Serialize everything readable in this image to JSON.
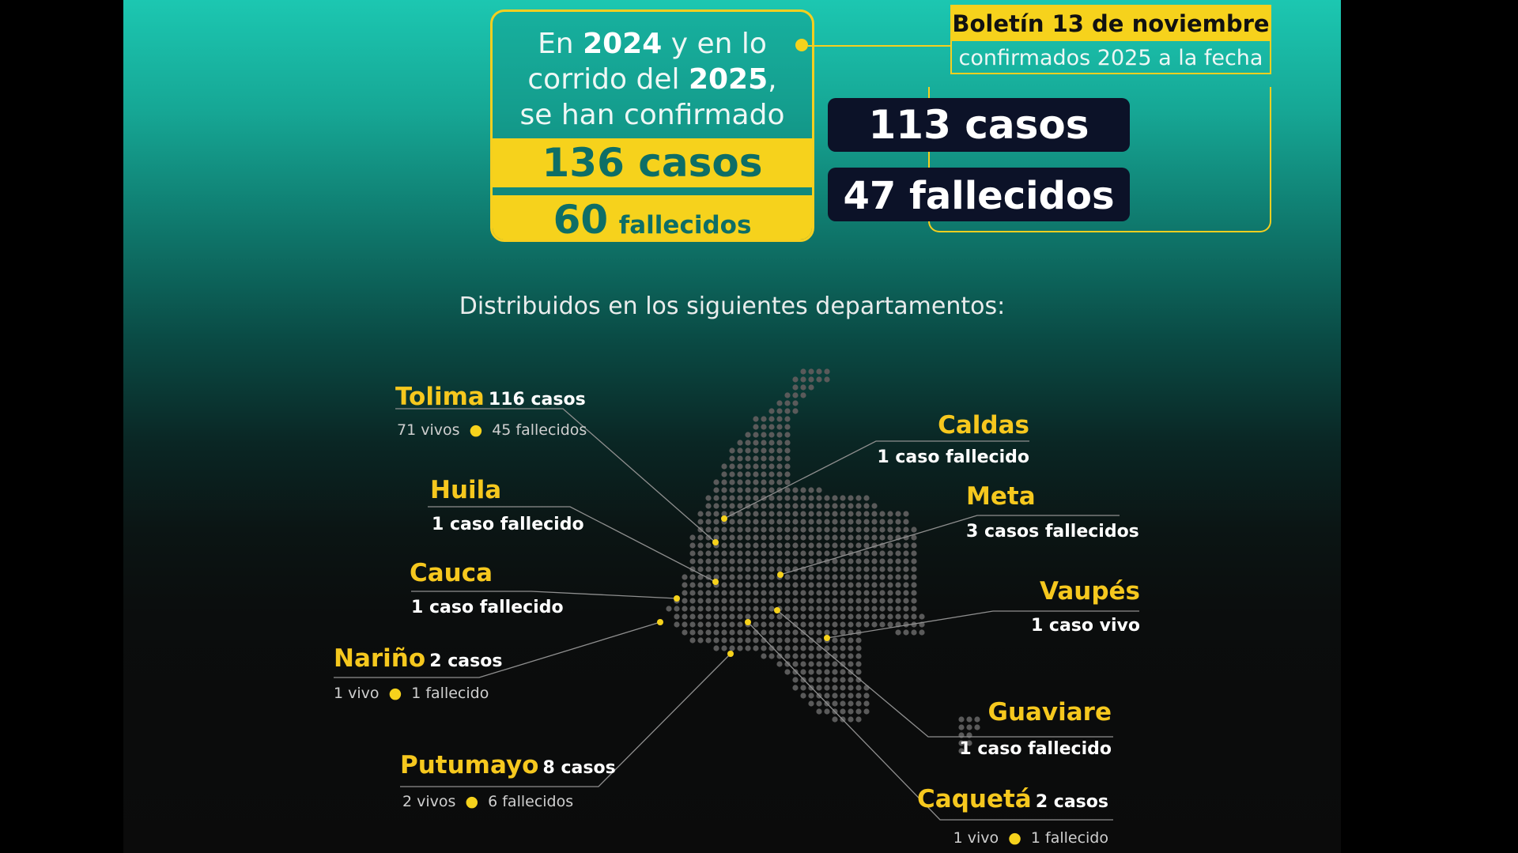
{
  "summary": {
    "line1_pre": "En ",
    "line1_year": "2024",
    "line1_post": " y en lo",
    "line2_pre": "corrido del ",
    "line2_year": "2025",
    "line2_post": ",",
    "line3": "se han confirmado",
    "cases": "136 casos",
    "deaths_number": "60",
    "deaths_label": "fallecidos"
  },
  "bulletin": {
    "title": "Boletín 13 de noviembre",
    "subtitle": "confirmados 2025 a la fecha",
    "cases": "113 casos",
    "deaths": "47 fallecidos"
  },
  "distribution_title": "Distribuidos en los siguientes departamentos:",
  "departments": {
    "tolima": {
      "name": "Tolima",
      "count": "116 casos",
      "alive": "71 vivos",
      "dead": "45 fallecidos"
    },
    "huila": {
      "name": "Huila",
      "detail": "1 caso fallecido"
    },
    "cauca": {
      "name": "Cauca",
      "detail": "1 caso fallecido"
    },
    "narino": {
      "name": "Nariño",
      "count": "2 casos",
      "alive": "1 vivo",
      "dead": "1 fallecido"
    },
    "putumayo": {
      "name": "Putumayo",
      "count": "8 casos",
      "alive": "2 vivos",
      "dead": "6 fallecidos"
    },
    "caldas": {
      "name": "Caldas",
      "detail": "1 caso fallecido"
    },
    "meta": {
      "name": "Meta",
      "detail": "3 casos fallecidos"
    },
    "vaupes": {
      "name": "Vaupés",
      "detail": "1 caso vivo"
    },
    "guaviare": {
      "name": "Guaviare",
      "detail": "1 caso fallecido"
    },
    "caqueta": {
      "name": "Caquetá",
      "count": "2 casos",
      "alive": "1 vivo",
      "dead": "1 fallecido"
    }
  },
  "colors": {
    "accent_yellow": "#f6d21c",
    "teal_top": "#1cc7b1",
    "dark_bg": "#0b0b0b",
    "pill_navy": "#0c1228",
    "map_dot": "#5a5a5a"
  }
}
